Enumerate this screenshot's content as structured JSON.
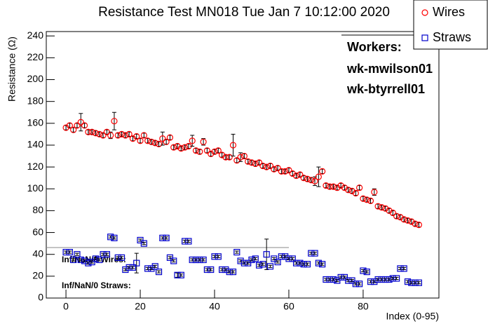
{
  "chart_data": {
    "type": "scatter",
    "title": "Resistance Test MN018 Tue Jan  7 10:12:00 2020",
    "x_label": "Index (0-95)",
    "y_label": "Resistance (Ω)",
    "xlim": [
      -5.3,
      100.4
    ],
    "ylim": [
      0,
      244
    ],
    "xticks": [
      0,
      20,
      40,
      60,
      80
    ],
    "yticks": [
      0,
      20,
      40,
      60,
      80,
      100,
      120,
      140,
      160,
      180,
      200,
      220,
      240
    ],
    "legend": "top-right",
    "annotations": [
      "Workers:",
      "wk-mwilson01",
      "wk-btyrrell01",
      "Inf/NaN/0 Wires:",
      "Inf/NaN/0 Straws:"
    ],
    "x": [
      0,
      1,
      2,
      3,
      4,
      5,
      6,
      7,
      8,
      9,
      10,
      11,
      12,
      13,
      14,
      15,
      16,
      17,
      18,
      19,
      20,
      21,
      22,
      23,
      24,
      25,
      26,
      27,
      28,
      29,
      30,
      31,
      32,
      33,
      34,
      35,
      36,
      37,
      38,
      39,
      40,
      41,
      42,
      43,
      44,
      45,
      46,
      47,
      48,
      49,
      50,
      51,
      52,
      53,
      54,
      55,
      56,
      57,
      58,
      59,
      60,
      61,
      62,
      63,
      64,
      65,
      66,
      67,
      68,
      69,
      70,
      71,
      72,
      73,
      74,
      75,
      76,
      77,
      78,
      79,
      80,
      81,
      82,
      83,
      84,
      85,
      86,
      87,
      88,
      89,
      90,
      91,
      92,
      93,
      94,
      95
    ],
    "series": [
      {
        "name": "Wires",
        "color": "#ff0000",
        "marker": "circle",
        "values": [
          156,
          158,
          154,
          158,
          161,
          158,
          152,
          152,
          151,
          150,
          149,
          152,
          149,
          162,
          149,
          150,
          149,
          150,
          146,
          148,
          144,
          149,
          144,
          143,
          142,
          141,
          146,
          143,
          147,
          138,
          139,
          137,
          138,
          139,
          144,
          135,
          134,
          143,
          135,
          132,
          134,
          135,
          131,
          129,
          129,
          140,
          126,
          129,
          130,
          125,
          124,
          123,
          124,
          121,
          120,
          121,
          118,
          119,
          116,
          116,
          117,
          114,
          112,
          113,
          110,
          109,
          108,
          107,
          111,
          116,
          103,
          102,
          102,
          101,
          103,
          101,
          99,
          98,
          96,
          101,
          91,
          90,
          89,
          97,
          84,
          83,
          82,
          80,
          78,
          75,
          74,
          72,
          71,
          70,
          68,
          67
        ],
        "errors": [
          2,
          2,
          2,
          2,
          8,
          2,
          2,
          2,
          2,
          2,
          2,
          2,
          3,
          8,
          2,
          2,
          2,
          2,
          2,
          2,
          2,
          2,
          2,
          2,
          2,
          2,
          6,
          2,
          2,
          2,
          2,
          2,
          2,
          2,
          5,
          2,
          2,
          3,
          2,
          2,
          2,
          2,
          2,
          2,
          2,
          10,
          2,
          4,
          2,
          2,
          2,
          2,
          2,
          2,
          2,
          2,
          2,
          2,
          2,
          2,
          2,
          2,
          2,
          2,
          2,
          2,
          2,
          4,
          9,
          2,
          2,
          2,
          2,
          2,
          2,
          2,
          2,
          2,
          2,
          2,
          2,
          2,
          2,
          3,
          2,
          2,
          2,
          2,
          2,
          2,
          2,
          2,
          2,
          2,
          2,
          2
        ]
      },
      {
        "name": "Straws",
        "color": "#0000cc",
        "marker": "square",
        "values": [
          42,
          42,
          35,
          40,
          35,
          34,
          32,
          33,
          36,
          35,
          40,
          40,
          56,
          55,
          37,
          37,
          26,
          28,
          28,
          32,
          53,
          50,
          27,
          27,
          29,
          24,
          55,
          55,
          37,
          34,
          21,
          21,
          52,
          52,
          35,
          35,
          35,
          35,
          26,
          26,
          38,
          38,
          26,
          26,
          24,
          24,
          42,
          34,
          32,
          32,
          35,
          36,
          30,
          31,
          40,
          29,
          36,
          33,
          38,
          38,
          36,
          36,
          32,
          32,
          31,
          31,
          41,
          41,
          32,
          31,
          17,
          17,
          17,
          16,
          19,
          19,
          16,
          16,
          13,
          13,
          25,
          24,
          15,
          15,
          17,
          17,
          17,
          17,
          18,
          18,
          27,
          27,
          15,
          14,
          14,
          14
        ],
        "errors": [
          1,
          1,
          1,
          1,
          1,
          1,
          1,
          1,
          1,
          1,
          1,
          1,
          1,
          1,
          1,
          1,
          1,
          1,
          1,
          9,
          1,
          1,
          1,
          1,
          1,
          1,
          1,
          1,
          1,
          1,
          2,
          1,
          1,
          1,
          1,
          1,
          1,
          1,
          1,
          1,
          1,
          1,
          1,
          1,
          1,
          1,
          1,
          1,
          1,
          1,
          1,
          1,
          1,
          1,
          14,
          1,
          1,
          1,
          1,
          1,
          1,
          1,
          1,
          1,
          1,
          1,
          1,
          1,
          1,
          1,
          1,
          1,
          1,
          1,
          1,
          1,
          1,
          1,
          1,
          1,
          1,
          1,
          1,
          1,
          1,
          1,
          1,
          1,
          1,
          1,
          1,
          1,
          1,
          1,
          1,
          1
        ]
      }
    ]
  }
}
